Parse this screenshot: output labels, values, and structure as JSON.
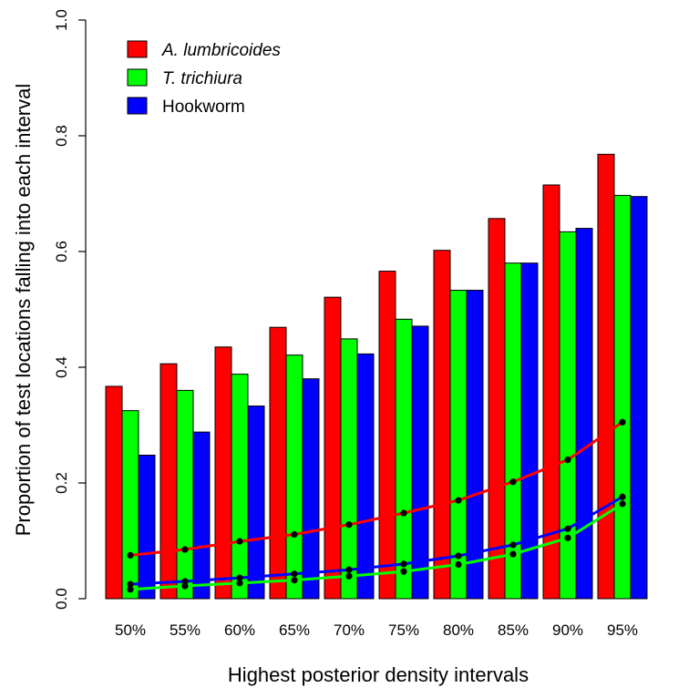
{
  "chart_data": {
    "type": "bar",
    "xlabel": "Highest posterior density intervals",
    "ylabel": "Proportion of test locations falling into each interval",
    "ylim": [
      0.0,
      1.0
    ],
    "yticks": [
      "0.0",
      "0.2",
      "0.4",
      "0.6",
      "0.8",
      "1.0"
    ],
    "ytick_values": [
      0.0,
      0.2,
      0.4,
      0.6,
      0.8,
      1.0
    ],
    "categories": [
      "50%",
      "55%",
      "60%",
      "65%",
      "70%",
      "75%",
      "80%",
      "85%",
      "90%",
      "95%"
    ],
    "grid": false,
    "legend_position": "top-left",
    "series": [
      {
        "name": "A. lumbricoides",
        "italic": true,
        "color": "#ff0000",
        "values": [
          0.367,
          0.406,
          0.435,
          0.469,
          0.521,
          0.566,
          0.602,
          0.657,
          0.715,
          0.768
        ]
      },
      {
        "name": "T. trichiura",
        "italic": true,
        "color": "#00ff00",
        "values": [
          0.325,
          0.36,
          0.388,
          0.421,
          0.449,
          0.483,
          0.533,
          0.58,
          0.634,
          0.697
        ]
      },
      {
        "name": "Hookworm",
        "italic": false,
        "color": "#0000ff",
        "values": [
          0.248,
          0.288,
          0.333,
          0.38,
          0.423,
          0.471,
          0.533,
          0.58,
          0.64,
          0.695
        ]
      }
    ],
    "lines": [
      {
        "color": "#ff0000",
        "values": [
          0.075,
          0.085,
          0.099,
          0.111,
          0.128,
          0.148,
          0.17,
          0.202,
          0.24,
          0.305
        ]
      },
      {
        "color": "#0000ff",
        "values": [
          0.025,
          0.03,
          0.036,
          0.043,
          0.05,
          0.06,
          0.074,
          0.093,
          0.121,
          0.176
        ]
      },
      {
        "color": "#00ff00",
        "values": [
          0.016,
          0.022,
          0.027,
          0.032,
          0.039,
          0.047,
          0.059,
          0.077,
          0.105,
          0.164
        ]
      }
    ]
  }
}
